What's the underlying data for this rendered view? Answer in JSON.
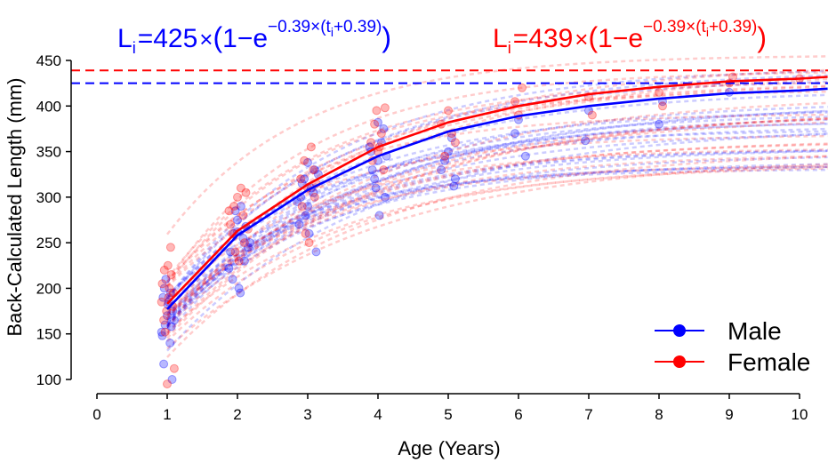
{
  "chart_data": {
    "type": "line",
    "xlabel": "Age (Years)",
    "ylabel": "Back-Calculated Length (mm)",
    "xlim": [
      0,
      10.4
    ],
    "ylim": [
      95,
      462
    ],
    "x_ticks": [
      0,
      1,
      2,
      3,
      4,
      5,
      6,
      7,
      8,
      9,
      10
    ],
    "y_ticks": [
      100,
      150,
      200,
      250,
      300,
      350,
      400,
      450
    ],
    "legend": {
      "position": "bottom-right",
      "entries": [
        "Male",
        "Female"
      ]
    },
    "equations": [
      {
        "series": "Male",
        "color": "#0000ff",
        "L": "L",
        "sub": "i",
        "eq": "=",
        "Linf": "425",
        "times": "×",
        "open": "(",
        "one": "1",
        "minus": "−",
        "e": "e",
        "exp": "−0.39×(t",
        "exp_sub": "i",
        "exp_end": "+0.39)",
        "close": ")"
      },
      {
        "series": "Female",
        "color": "#ff0000",
        "L": "L",
        "sub": "i",
        "eq": "=",
        "Linf": "439",
        "times": "×",
        "open": "(",
        "one": "1",
        "minus": "−",
        "e": "e",
        "exp": "−0.39×(t",
        "exp_sub": "i",
        "exp_end": "+0.39)",
        "close": ")"
      }
    ],
    "asymptotes": [
      {
        "series": "Male",
        "y": 425,
        "color": "#0000ff"
      },
      {
        "series": "Female",
        "y": 439,
        "color": "#ff0000"
      }
    ],
    "series": [
      {
        "name": "Male",
        "color": "#0000ff",
        "mean_x": [
          1,
          2,
          3,
          4,
          5,
          6,
          7,
          8,
          9,
          10,
          10.4
        ],
        "mean_y": [
          177,
          258,
          308,
          345,
          372,
          389,
          400,
          408,
          414,
          417,
          419
        ]
      },
      {
        "name": "Female",
        "color": "#ff0000",
        "mean_x": [
          1,
          2,
          3,
          4,
          5,
          6,
          7,
          8,
          9,
          10,
          10.4
        ],
        "mean_y": [
          183,
          263,
          314,
          355,
          382,
          400,
          413,
          421,
          427,
          430,
          432
        ]
      }
    ],
    "individual_fits": {
      "Male": {
        "count": 24,
        "Linf_range": [
          325,
          445
        ],
        "alpha": 0.2
      },
      "Female": {
        "count": 24,
        "Linf_range": [
          335,
          460
        ],
        "alpha": 0.2
      }
    },
    "points": {
      "Male": [
        [
          0.93,
          148
        ],
        [
          0.95,
          117
        ],
        [
          0.97,
          160
        ],
        [
          1.0,
          170
        ],
        [
          1.02,
          185
        ],
        [
          1.05,
          195
        ],
        [
          0.96,
          200
        ],
        [
          1.08,
          175
        ],
        [
          1.1,
          165
        ],
        [
          0.92,
          152
        ],
        [
          1.04,
          140
        ],
        [
          1.07,
          100
        ],
        [
          0.98,
          210
        ],
        [
          1.01,
          182
        ],
        [
          1.06,
          158
        ],
        [
          0.94,
          190
        ],
        [
          1.9,
          240
        ],
        [
          1.95,
          260
        ],
        [
          2.0,
          275
        ],
        [
          2.05,
          290
        ],
        [
          2.1,
          230
        ],
        [
          1.93,
          210
        ],
        [
          2.02,
          200
        ],
        [
          2.08,
          255
        ],
        [
          2.12,
          268
        ],
        [
          1.97,
          285
        ],
        [
          2.15,
          245
        ],
        [
          1.88,
          222
        ],
        [
          2.04,
          195
        ],
        [
          2.18,
          250
        ],
        [
          2.0,
          262
        ],
        [
          2.9,
          300
        ],
        [
          2.95,
          320
        ],
        [
          3.0,
          290
        ],
        [
          3.05,
          310
        ],
        [
          3.1,
          330
        ],
        [
          2.88,
          270
        ],
        [
          3.02,
          260
        ],
        [
          3.12,
          240
        ],
        [
          2.97,
          280
        ],
        [
          3.08,
          305
        ],
        [
          2.92,
          315
        ],
        [
          3.15,
          325
        ],
        [
          2.85,
          295
        ],
        [
          3.0,
          338
        ],
        [
          3.9,
          350
        ],
        [
          3.95,
          320
        ],
        [
          4.0,
          340
        ],
        [
          4.05,
          360
        ],
        [
          4.1,
          300
        ],
        [
          3.92,
          330
        ],
        [
          4.02,
          280
        ],
        [
          4.08,
          375
        ],
        [
          3.97,
          310
        ],
        [
          4.12,
          345
        ],
        [
          3.88,
          355
        ],
        [
          4.0,
          382
        ],
        [
          4.9,
          330
        ],
        [
          5.0,
          350
        ],
        [
          5.1,
          320
        ],
        [
          5.05,
          365
        ],
        [
          4.95,
          340
        ],
        [
          5.08,
          312
        ],
        [
          6.0,
          385
        ],
        [
          6.1,
          345
        ],
        [
          5.95,
          370
        ],
        [
          7.0,
          395
        ],
        [
          6.95,
          362
        ],
        [
          8.0,
          380
        ],
        [
          8.05,
          405
        ],
        [
          9.0,
          415
        ]
      ],
      "Female": [
        [
          0.93,
          205
        ],
        [
          0.96,
          220
        ],
        [
          0.99,
          175
        ],
        [
          1.02,
          190
        ],
        [
          1.05,
          245
        ],
        [
          0.95,
          165
        ],
        [
          1.08,
          180
        ],
        [
          1.1,
          112
        ],
        [
          1.0,
          95
        ],
        [
          0.97,
          152
        ],
        [
          1.03,
          200
        ],
        [
          1.06,
          215
        ],
        [
          0.92,
          185
        ],
        [
          1.09,
          195
        ],
        [
          1.01,
          225
        ],
        [
          1.9,
          270
        ],
        [
          1.95,
          290
        ],
        [
          2.0,
          300
        ],
        [
          2.05,
          310
        ],
        [
          2.1,
          250
        ],
        [
          1.93,
          260
        ],
        [
          2.08,
          280
        ],
        [
          2.12,
          305
        ],
        [
          1.97,
          240
        ],
        [
          2.02,
          230
        ],
        [
          2.15,
          265
        ],
        [
          1.88,
          285
        ],
        [
          2.9,
          320
        ],
        [
          2.95,
          340
        ],
        [
          3.0,
          310
        ],
        [
          3.05,
          355
        ],
        [
          3.1,
          300
        ],
        [
          2.92,
          290
        ],
        [
          3.08,
          330
        ],
        [
          2.97,
          260
        ],
        [
          3.12,
          315
        ],
        [
          3.02,
          250
        ],
        [
          3.9,
          360
        ],
        [
          3.95,
          380
        ],
        [
          4.0,
          350
        ],
        [
          4.05,
          370
        ],
        [
          4.1,
          398
        ],
        [
          3.92,
          340
        ],
        [
          4.08,
          330
        ],
        [
          4.02,
          355
        ],
        [
          3.98,
          395
        ],
        [
          4.9,
          380
        ],
        [
          5.0,
          395
        ],
        [
          5.1,
          360
        ],
        [
          4.95,
          345
        ],
        [
          5.05,
          370
        ],
        [
          5.95,
          405
        ],
        [
          6.0,
          390
        ],
        [
          6.05,
          420
        ],
        [
          7.0,
          410
        ],
        [
          7.05,
          390
        ],
        [
          8.0,
          415
        ],
        [
          8.05,
          400
        ],
        [
          9.0,
          425
        ],
        [
          9.05,
          432
        ],
        [
          10.0,
          430
        ]
      ]
    }
  }
}
